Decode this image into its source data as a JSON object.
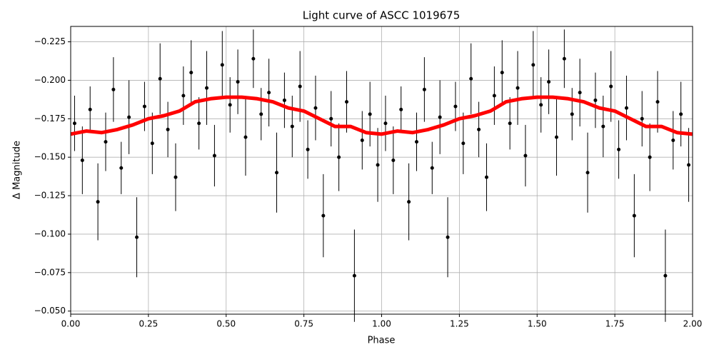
{
  "chart_data": {
    "type": "scatter",
    "title": "Light curve of ASCC 1019675",
    "x_label": "Phase",
    "y_label": "Δ Magnitude",
    "xlim": [
      0,
      2
    ],
    "ylim": [
      -0.048,
      -0.235
    ],
    "xticks": [
      {
        "value": 0,
        "label": "0.00"
      },
      {
        "value": 0.25,
        "label": "0.25"
      },
      {
        "value": 0.5,
        "label": "0.50"
      },
      {
        "value": 0.75,
        "label": "0.75"
      },
      {
        "value": 1,
        "label": "1.00"
      },
      {
        "value": 1.25,
        "label": "1.25"
      },
      {
        "value": 1.5,
        "label": "1.50"
      },
      {
        "value": 1.75,
        "label": "1.75"
      },
      {
        "value": 2,
        "label": "2.00"
      }
    ],
    "yticks": [
      {
        "value": -0.225,
        "label": "−0.225"
      },
      {
        "value": -0.2,
        "label": "−0.200"
      },
      {
        "value": -0.175,
        "label": "−0.175"
      },
      {
        "value": -0.15,
        "label": "−0.150"
      },
      {
        "value": -0.125,
        "label": "−0.125"
      },
      {
        "value": -0.1,
        "label": "−0.100"
      },
      {
        "value": -0.075,
        "label": "−0.075"
      },
      {
        "value": -0.05,
        "label": "−0.050"
      }
    ],
    "grid": true,
    "points": {
      "color": "#000000",
      "x": [
        0.0125,
        0.0375,
        0.0625,
        0.0875,
        0.1125,
        0.1375,
        0.1625,
        0.1875,
        0.2125,
        0.2375,
        0.2625,
        0.2875,
        0.3125,
        0.3375,
        0.3625,
        0.3875,
        0.4125,
        0.4375,
        0.4625,
        0.4875,
        0.5125,
        0.5375,
        0.5625,
        0.5875,
        0.6125,
        0.6375,
        0.6625,
        0.6875,
        0.7125,
        0.7375,
        0.7625,
        0.7875,
        0.8125,
        0.8375,
        0.8625,
        0.8875,
        0.9125,
        0.9375,
        0.9625,
        0.9875,
        1.0125,
        1.0375,
        1.0625,
        1.0875,
        1.1125,
        1.1375,
        1.1625,
        1.1875,
        1.2125,
        1.2375,
        1.2625,
        1.2875,
        1.3125,
        1.3375,
        1.3625,
        1.3875,
        1.4125,
        1.4375,
        1.4625,
        1.4875,
        1.5125,
        1.5375,
        1.5625,
        1.5875,
        1.6125,
        1.6375,
        1.6625,
        1.6875,
        1.7125,
        1.7375,
        1.7625,
        1.7875,
        1.8125,
        1.8375,
        1.8625,
        1.8875,
        1.9125,
        1.9375,
        1.9625,
        1.9875
      ],
      "y": [
        -0.172,
        -0.148,
        -0.181,
        -0.121,
        -0.16,
        -0.194,
        -0.143,
        -0.176,
        -0.098,
        -0.183,
        -0.159,
        -0.201,
        -0.168,
        -0.137,
        -0.19,
        -0.205,
        -0.172,
        -0.195,
        -0.151,
        -0.21,
        -0.184,
        -0.199,
        -0.163,
        -0.214,
        -0.178,
        -0.192,
        -0.14,
        -0.187,
        -0.17,
        -0.196,
        -0.155,
        -0.182,
        -0.112,
        -0.175,
        -0.15,
        -0.186,
        -0.073,
        -0.161,
        -0.178,
        -0.145,
        -0.172,
        -0.148,
        -0.181,
        -0.121,
        -0.16,
        -0.194,
        -0.143,
        -0.176,
        -0.098,
        -0.183,
        -0.159,
        -0.201,
        -0.168,
        -0.137,
        -0.19,
        -0.205,
        -0.172,
        -0.195,
        -0.151,
        -0.21,
        -0.184,
        -0.199,
        -0.163,
        -0.214,
        -0.178,
        -0.192,
        -0.14,
        -0.187,
        -0.17,
        -0.196,
        -0.155,
        -0.182,
        -0.112,
        -0.175,
        -0.15,
        -0.186,
        -0.073,
        -0.161,
        -0.178,
        -0.145
      ],
      "errors": [
        0.018,
        0.022,
        0.015,
        0.025,
        0.019,
        0.021,
        0.017,
        0.024,
        0.026,
        0.016,
        0.02,
        0.023,
        0.018,
        0.022,
        0.019,
        0.021,
        0.017,
        0.024,
        0.02,
        0.022,
        0.018,
        0.021,
        0.025,
        0.019,
        0.017,
        0.022,
        0.026,
        0.018,
        0.02,
        0.023,
        0.019,
        0.021,
        0.027,
        0.018,
        0.022,
        0.02,
        0.03,
        0.019,
        0.021,
        0.024,
        0.018,
        0.022,
        0.015,
        0.025,
        0.019,
        0.021,
        0.017,
        0.024,
        0.026,
        0.016,
        0.02,
        0.023,
        0.018,
        0.022,
        0.019,
        0.021,
        0.017,
        0.024,
        0.02,
        0.022,
        0.018,
        0.021,
        0.025,
        0.019,
        0.017,
        0.022,
        0.026,
        0.018,
        0.02,
        0.023,
        0.019,
        0.021,
        0.027,
        0.018,
        0.022,
        0.02,
        0.03,
        0.019,
        0.021,
        0.024
      ]
    },
    "curve": {
      "color": "#ff0000",
      "x": [
        0,
        0.05,
        0.1,
        0.15,
        0.2,
        0.25,
        0.3,
        0.35,
        0.4,
        0.45,
        0.5,
        0.55,
        0.6,
        0.65,
        0.7,
        0.75,
        0.8,
        0.85,
        0.9,
        0.95,
        1.0,
        1.05,
        1.1,
        1.15,
        1.2,
        1.25,
        1.3,
        1.35,
        1.4,
        1.45,
        1.5,
        1.55,
        1.6,
        1.65,
        1.7,
        1.75,
        1.8,
        1.85,
        1.9,
        1.95,
        2.0
      ],
      "y": [
        -0.165,
        -0.167,
        -0.166,
        -0.168,
        -0.171,
        -0.175,
        -0.177,
        -0.18,
        -0.186,
        -0.188,
        -0.189,
        -0.189,
        -0.188,
        -0.186,
        -0.182,
        -0.18,
        -0.175,
        -0.17,
        -0.17,
        -0.166,
        -0.165,
        -0.167,
        -0.166,
        -0.168,
        -0.171,
        -0.175,
        -0.177,
        -0.18,
        -0.186,
        -0.188,
        -0.189,
        -0.189,
        -0.188,
        -0.186,
        -0.182,
        -0.18,
        -0.175,
        -0.17,
        -0.17,
        -0.166,
        -0.165
      ]
    }
  }
}
